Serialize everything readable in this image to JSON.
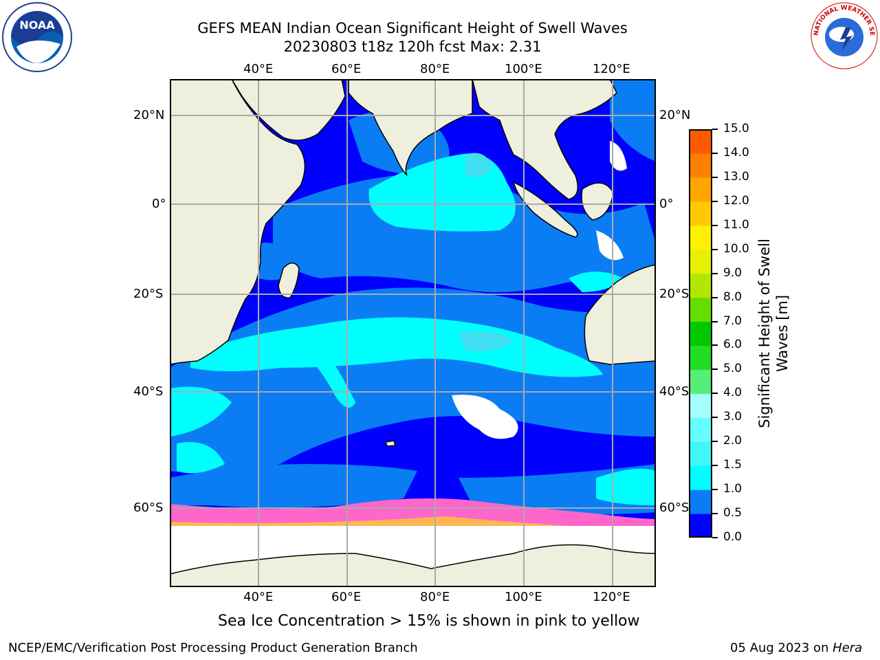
{
  "title": {
    "line1": "GEFS MEAN Indian Ocean Significant Height of Swell Waves",
    "line2": "20230803 t18z 120h fcst   Max: 2.31"
  },
  "map": {
    "lon_ticks": [
      "40°E",
      "60°E",
      "80°E",
      "100°E",
      "120°E"
    ],
    "lat_ticks_left": [
      "20°N",
      "0°",
      "20°S",
      "40°S",
      "60°S"
    ],
    "lat_ticks_right": [
      "20°N",
      "0°",
      "20°S",
      "40°S",
      "60°S"
    ],
    "colors": {
      "land": "#efefde",
      "ocean_deep": "#0000ff",
      "ocean_mid": "#0a7df5",
      "ocean_light": "#00ffff",
      "ocean_pale": "#40e0f0",
      "ice_edge": "#ff66cc",
      "grid": "#aaaaaa"
    }
  },
  "colorbar": {
    "label_line1": "Significant Height of Swell",
    "label_line2": "Waves [m]",
    "ticks": [
      "0.0",
      "0.5",
      "1.0",
      "1.5",
      "2.0",
      "3.0",
      "4.0",
      "5.0",
      "6.0",
      "7.0",
      "8.0",
      "9.0",
      "10.0",
      "11.0",
      "12.0",
      "13.0",
      "14.0",
      "15.0"
    ],
    "colors": [
      "#0000ff",
      "#0a7df5",
      "#00ffff",
      "#40f6f6",
      "#66ffff",
      "#a6ffff",
      "#55ee77",
      "#22dd22",
      "#00c800",
      "#66dd00",
      "#b3e600",
      "#e6f000",
      "#fff000",
      "#ffc800",
      "#ffa500",
      "#ff8000",
      "#ff5a00",
      "#ff2a00",
      "#ff0000"
    ]
  },
  "note": "Sea Ice Concentration > 15% is shown in pink to yellow",
  "footer": {
    "left": "NCEP/EMC/Verification Post Processing Product Generation Branch",
    "right_date": "05 Aug 2023 on ",
    "right_host": "Hera"
  },
  "logos": {
    "noaa_text": "NOAA",
    "nws_text": "NATIONAL WEATHER SERVICE"
  }
}
